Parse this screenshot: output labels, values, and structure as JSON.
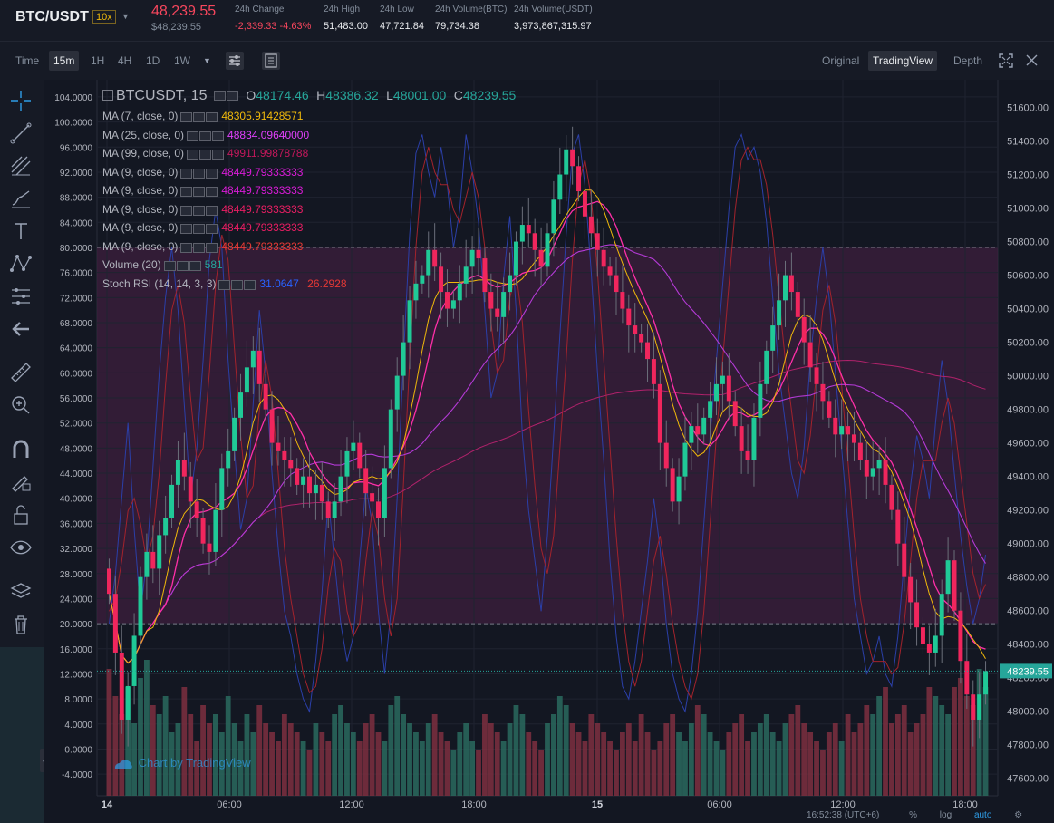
{
  "header": {
    "pair": "BTC/USDT",
    "leverage": "10x",
    "last_price": "48,239.55",
    "last_price_usd": "$48,239.55",
    "stats": [
      {
        "label": "24h Change",
        "value": "-2,339.33 -4.63%",
        "neg": true
      },
      {
        "label": "24h High",
        "value": "51,483.00"
      },
      {
        "label": "24h Low",
        "value": "47,721.84"
      },
      {
        "label": "24h Volume(BTC)",
        "value": "79,734.38"
      },
      {
        "label": "24h Volume(USDT)",
        "value": "3,973,867,315.97"
      }
    ]
  },
  "timeframes": {
    "time_label": "Time",
    "items": [
      "15m",
      "1H",
      "4H",
      "1D",
      "1W"
    ],
    "active": "15m"
  },
  "views": {
    "original": "Original",
    "tradingview": "TradingView",
    "depth": "Depth"
  },
  "legend": {
    "symbol": "BTCUSDT, 15",
    "o_label": "O",
    "o": "48174.46",
    "h_label": "H",
    "h": "48386.32",
    "l_label": "L",
    "l": "48001.00",
    "c_label": "C",
    "c": "48239.55",
    "indicators": [
      {
        "name": "MA (7, close, 0)",
        "value": "48305.91428571",
        "color": "#f0b90b"
      },
      {
        "name": "MA (25, close, 0)",
        "value": "48834.09640000",
        "color": "#e040fb"
      },
      {
        "name": "MA (99, close, 0)",
        "value": "49911.99878788",
        "color": "#c2185b"
      },
      {
        "name": "MA (9, close, 0)",
        "value": "48449.79333333",
        "color": "#d81bd6"
      },
      {
        "name": "MA (9, close, 0)",
        "value": "48449.79333333",
        "color": "#d81bd6"
      },
      {
        "name": "MA (9, close, 0)",
        "value": "48449.79333333",
        "color": "#e91e63"
      },
      {
        "name": "MA (9, close, 0)",
        "value": "48449.79333333",
        "color": "#e91e63"
      },
      {
        "name": "MA (9, close, 0)",
        "value": "48449.79333333",
        "color": "#e53935"
      }
    ],
    "volume": {
      "name": "Volume (20)",
      "value": "581",
      "color": "#26a69a"
    },
    "stoch": {
      "name": "Stoch RSI (14, 14, 3, 3)",
      "k": "31.0647",
      "d": "26.2928",
      "k_color": "#2962ff",
      "d_color": "#e53935"
    }
  },
  "watermark": "Chart by TradingView",
  "left_axis_labels": [
    "104.0000",
    "100.0000",
    "96.0000",
    "92.0000",
    "88.0000",
    "84.0000",
    "80.0000",
    "76.0000",
    "72.0000",
    "68.0000",
    "64.0000",
    "60.0000",
    "56.0000",
    "52.0000",
    "48.0000",
    "44.0000",
    "40.0000",
    "36.0000",
    "32.0000",
    "28.0000",
    "24.0000",
    "20.0000",
    "16.0000",
    "12.0000",
    "8.0000",
    "4.0000",
    "0.0000",
    "-4.0000"
  ],
  "right_axis_labels": [
    "51600.00",
    "51400.00",
    "51200.00",
    "51000.00",
    "50800.00",
    "50600.00",
    "50400.00",
    "50200.00",
    "50000.00",
    "49800.00",
    "49600.00",
    "49400.00",
    "49200.00",
    "49000.00",
    "48800.00",
    "48600.00",
    "48400.00",
    "48200.00",
    "48000.00",
    "47800.00",
    "47600.00"
  ],
  "current_price_tag": "48239.55",
  "time_axis_labels": [
    {
      "label": "14",
      "bold": true
    },
    {
      "label": "06:00"
    },
    {
      "label": "12:00"
    },
    {
      "label": "18:00"
    },
    {
      "label": "15",
      "bold": true
    },
    {
      "label": "06:00"
    },
    {
      "label": "12:00"
    },
    {
      "label": "18:00"
    }
  ],
  "bottom": {
    "clock": "16:52:38 (UTC+6)",
    "pct": "%",
    "log": "log",
    "auto": "auto"
  },
  "colors": {
    "up": "#26a69a",
    "down": "#ef5350",
    "up_bright": "#20c997",
    "down_bright": "#f0265d",
    "rsi_band": "#3d1f3d"
  },
  "chart_data": {
    "type": "candlestick",
    "price_range": [
      47550,
      51700
    ],
    "stoch_range": [
      -6,
      105
    ],
    "stoch_bands": [
      80,
      20
    ],
    "closes": [
      48700,
      48350,
      47950,
      48150,
      48450,
      48800,
      48950,
      48850,
      49050,
      49150,
      49350,
      49500,
      49400,
      49250,
      49150,
      49000,
      48950,
      49200,
      49450,
      49550,
      49750,
      49900,
      50050,
      50150,
      49950,
      49800,
      49600,
      49550,
      49500,
      49450,
      49350,
      49400,
      49300,
      49350,
      49250,
      49150,
      49250,
      49400,
      49550,
      49600,
      49450,
      49300,
      49250,
      49150,
      49450,
      49800,
      50000,
      50200,
      50450,
      50550,
      50600,
      50750,
      50650,
      50500,
      50400,
      50450,
      50550,
      50650,
      50750,
      50700,
      50500,
      50400,
      50350,
      50500,
      50600,
      50800,
      50900,
      50850,
      50750,
      50650,
      50850,
      51050,
      51200,
      51350,
      51250,
      51100,
      50950,
      50850,
      50750,
      50650,
      50600,
      50500,
      50400,
      50300,
      50250,
      50200,
      50100,
      49950,
      49600,
      49450,
      49250,
      49400,
      49600,
      49700,
      49650,
      49750,
      49850,
      49950,
      50000,
      49850,
      49700,
      49550,
      49500,
      49750,
      49950,
      50150,
      50300,
      50450,
      50600,
      50500,
      50350,
      50200,
      50050,
      49950,
      49850,
      49750,
      49650,
      49700,
      49650,
      49600,
      49500,
      49400,
      49450,
      49500,
      49350,
      49200,
      49000,
      48800,
      48650,
      48500,
      48400,
      48350,
      48450,
      48700,
      48900,
      48600,
      48300,
      48100,
      47950,
      48100,
      48239.55
    ],
    "volumes": [
      14,
      11,
      9,
      12,
      8,
      13,
      15,
      10,
      9,
      11,
      7,
      8,
      12,
      9,
      6,
      10,
      8,
      9,
      7,
      11,
      8,
      6,
      9,
      7,
      10,
      8,
      7,
      6,
      9,
      8,
      7,
      6,
      5,
      8,
      7,
      6,
      9,
      10,
      8,
      7,
      6,
      8,
      9,
      7,
      6,
      10,
      11,
      9,
      8,
      7,
      6,
      8,
      9,
      7,
      6,
      5,
      7,
      8,
      6,
      5,
      9,
      8,
      7,
      6,
      8,
      10,
      9,
      7,
      6,
      5,
      8,
      9,
      11,
      10,
      8,
      7,
      6,
      9,
      8,
      7,
      6,
      5,
      7,
      8,
      6,
      9,
      7,
      5,
      6,
      8,
      9,
      7,
      6,
      8,
      10,
      9,
      7,
      6,
      5,
      7,
      8,
      9,
      6,
      7,
      8,
      9,
      7,
      6,
      8,
      9,
      10,
      8,
      7,
      6,
      5,
      7,
      8,
      6,
      9,
      7,
      8,
      10,
      9,
      11,
      12,
      8,
      9,
      10,
      7,
      8,
      9,
      12,
      11,
      10,
      9,
      12,
      13,
      11,
      10,
      14,
      12
    ],
    "stoch_k": [
      20,
      28,
      40,
      52,
      35,
      22,
      30,
      45,
      60,
      72,
      80,
      70,
      55,
      40,
      48,
      62,
      78,
      86,
      80,
      62,
      48,
      35,
      40,
      55,
      70,
      60,
      44,
      32,
      22,
      18,
      12,
      8,
      6,
      14,
      25,
      40,
      30,
      20,
      14,
      18,
      30,
      42,
      36,
      22,
      12,
      22,
      40,
      62,
      82,
      95,
      98,
      92,
      88,
      96,
      90,
      80,
      86,
      98,
      92,
      84,
      70,
      56,
      60,
      75,
      85,
      70,
      50,
      38,
      30,
      22,
      34,
      50,
      66,
      82,
      95,
      98,
      90,
      76,
      60,
      46,
      30,
      18,
      10,
      8,
      14,
      22,
      30,
      40,
      32,
      20,
      12,
      8,
      6,
      12,
      22,
      36,
      50,
      62,
      74,
      86,
      96,
      98,
      94,
      96,
      92,
      84,
      72,
      60,
      52,
      44,
      40,
      48,
      62,
      72,
      80,
      72,
      60,
      48,
      36,
      24,
      18,
      12,
      14,
      18,
      12,
      10,
      18,
      30,
      42,
      50,
      46,
      40,
      52,
      62,
      55,
      44,
      34,
      26,
      20,
      24,
      31
    ],
    "stoch_d": [
      22,
      24,
      30,
      38,
      40,
      36,
      30,
      34,
      44,
      58,
      70,
      74,
      68,
      56,
      46,
      48,
      60,
      74,
      82,
      78,
      64,
      50,
      40,
      42,
      54,
      62,
      56,
      44,
      32,
      24,
      18,
      12,
      9,
      10,
      16,
      26,
      32,
      30,
      22,
      18,
      20,
      30,
      38,
      34,
      24,
      18,
      24,
      42,
      62,
      80,
      92,
      96,
      92,
      90,
      90,
      86,
      84,
      88,
      92,
      88,
      80,
      68,
      60,
      62,
      72,
      76,
      68,
      54,
      42,
      32,
      28,
      34,
      48,
      62,
      78,
      90,
      94,
      88,
      76,
      62,
      48,
      34,
      22,
      14,
      10,
      14,
      22,
      30,
      34,
      28,
      20,
      14,
      10,
      8,
      12,
      22,
      36,
      50,
      62,
      74,
      86,
      94,
      96,
      94,
      94,
      90,
      82,
      72,
      62,
      54,
      46,
      44,
      50,
      60,
      70,
      74,
      68,
      58,
      46,
      34,
      24,
      18,
      14,
      14,
      14,
      12,
      13,
      20,
      30,
      40,
      46,
      46,
      46,
      52,
      56,
      52,
      44,
      36,
      28,
      24,
      26.29
    ]
  }
}
